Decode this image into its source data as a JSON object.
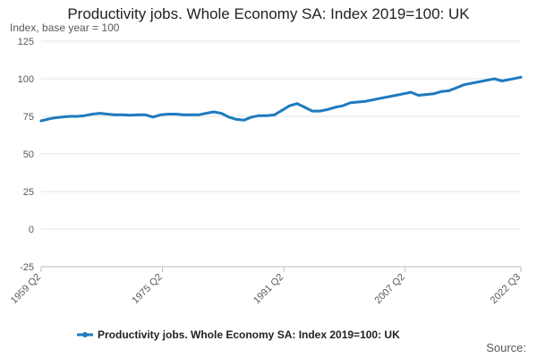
{
  "chart_data": {
    "type": "line",
    "title": "Productivity jobs. Whole Economy SA: Index 2019=100: UK",
    "ylabel": "Index, base year = 100",
    "xlabel": "",
    "ylim": [
      -25,
      125
    ],
    "y_ticks": [
      125,
      100,
      75,
      50,
      25,
      0,
      -25
    ],
    "x_range": [
      1959.25,
      2022.5
    ],
    "x_ticks": [
      {
        "label": "1959 Q2",
        "year": 1959.25
      },
      {
        "label": "1975 Q2",
        "year": 1975.25
      },
      {
        "label": "1991 Q2",
        "year": 1991.25
      },
      {
        "label": "2007 Q2",
        "year": 2007.25
      },
      {
        "label": "2022 Q3",
        "year": 2022.5
      }
    ],
    "grid": "horizontal",
    "legend_position": "bottom",
    "color": "#1f7bbf",
    "series": [
      {
        "name": "Productivity jobs. Whole Economy SA: Index 2019=100: UK",
        "x": [
          1959.25,
          1960,
          1961,
          1962,
          1963,
          1964,
          1965,
          1966,
          1967,
          1968,
          1969,
          1970,
          1971,
          1972,
          1973,
          1974,
          1975,
          1976,
          1977,
          1978,
          1979,
          1980,
          1981,
          1982,
          1983,
          1984,
          1985,
          1986,
          1987,
          1988,
          1989,
          1990,
          1991,
          1992,
          1993,
          1994,
          1995,
          1996,
          1997,
          1998,
          1999,
          2000,
          2001,
          2002,
          2003,
          2004,
          2005,
          2006,
          2007,
          2008,
          2009,
          2010,
          2011,
          2012,
          2013,
          2014,
          2015,
          2016,
          2017,
          2018,
          2019,
          2020,
          2021,
          2022.5
        ],
        "values": [
          72,
          73,
          74,
          74.5,
          75,
          75,
          75.5,
          76.5,
          77,
          76.5,
          76,
          76,
          75.8,
          76,
          76,
          74.5,
          76,
          76.5,
          76.5,
          76,
          76,
          76,
          77,
          78,
          77,
          74.5,
          73,
          72.5,
          74.5,
          75.5,
          75.5,
          76,
          79,
          82,
          83.5,
          81,
          78.5,
          78.5,
          79.5,
          81,
          82,
          84,
          84.5,
          85,
          86,
          87,
          88,
          89,
          90,
          91,
          89,
          89.5,
          90,
          91.5,
          92,
          94,
          96,
          97,
          98,
          99,
          100,
          98.5,
          99.5,
          101
        ]
      }
    ]
  },
  "legend": {
    "label": "Productivity jobs. Whole Economy SA: Index 2019=100: UK"
  },
  "source_label": "Source:"
}
